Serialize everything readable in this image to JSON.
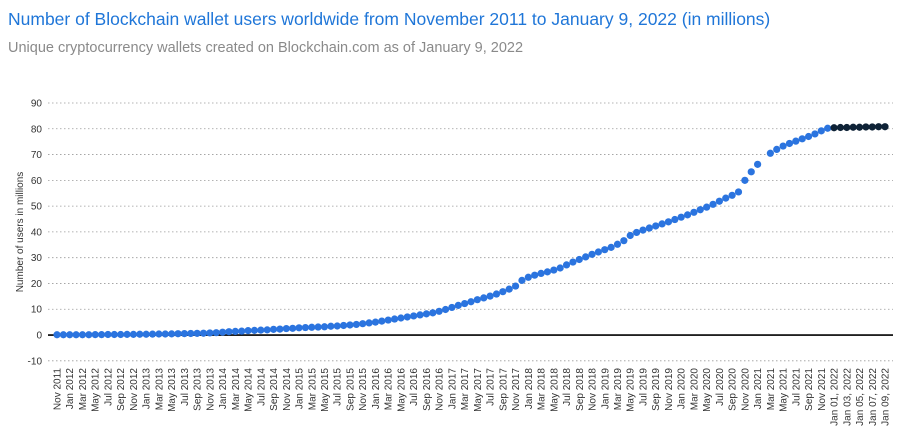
{
  "chart_data": {
    "type": "line",
    "title": "Number of Blockchain wallet users worldwide from November 2011 to January 9, 2022 (in millions)",
    "subtitle": "Unique cryptocurrency wallets created on Blockchain.com as of January 9, 2022",
    "y_label": "Number of users in millions",
    "categories": [
      "Nov 2011",
      null,
      "Jan 2012",
      null,
      "Mar 2012",
      null,
      "May 2012",
      null,
      "Jul 2012",
      null,
      "Sep 2012",
      null,
      "Nov 2012",
      null,
      "Jan 2013",
      null,
      "Mar 2013",
      null,
      "May 2013",
      null,
      "Jul 2013",
      null,
      "Sep 2013",
      null,
      "Nov 2013",
      null,
      "Jan 2014",
      null,
      "Mar 2014",
      null,
      "May 2014",
      null,
      "Jul 2014",
      null,
      "Sep 2014",
      null,
      "Nov 2014",
      null,
      "Jan 2015",
      null,
      "Mar 2015",
      null,
      "May 2015",
      null,
      "Jul 2015",
      null,
      "Sep 2015",
      null,
      "Nov 2015",
      null,
      "Jan 2016",
      null,
      "Mar 2016",
      null,
      "May 2016",
      null,
      "Jul 2016",
      null,
      "Sep 2016",
      null,
      "Nov 2016",
      null,
      "Jan 2017",
      null,
      "Mar 2017",
      null,
      "May 2017",
      null,
      "Jul 2017",
      null,
      "Sep 2017",
      null,
      "Nov 2017",
      null,
      "Jan 2018",
      null,
      "Mar 2018",
      null,
      "May 2018",
      null,
      "Jul 2018",
      null,
      "Sep 2018",
      null,
      "Nov 2018",
      null,
      "Jan 2019",
      null,
      "Mar 2019",
      null,
      "May 2019",
      null,
      "Jul 2019",
      null,
      "Sep 2019",
      null,
      "Nov 2019",
      null,
      "Jan 2020",
      null,
      "Mar 2020",
      null,
      "May 2020",
      null,
      "Jul 2020",
      null,
      "Sep 2020",
      null,
      "Nov 2020",
      null,
      "Jan 2021",
      null,
      "Mar 2021",
      null,
      "May 2021",
      null,
      "Jul 2021",
      null,
      "Sep 2021",
      null,
      "Nov 2021",
      null,
      "Jan 01, 2022",
      null,
      "Jan 03, 2022",
      null,
      "Jan 05, 2022",
      null,
      "Jan 07, 2022",
      null,
      "Jan 09, 2022"
    ],
    "series": [
      {
        "color": "#2b74df",
        "values": [
          0.1,
          0.1,
          0.1,
          0.1,
          0.1,
          0.1,
          0.15,
          0.15,
          0.2,
          0.2,
          0.2,
          0.25,
          0.25,
          0.3,
          0.3,
          0.35,
          0.4,
          0.4,
          0.45,
          0.5,
          0.55,
          0.6,
          0.65,
          0.7,
          0.8,
          0.9,
          1.1,
          1.3,
          1.4,
          1.5,
          1.7,
          1.8,
          1.9,
          2.0,
          2.2,
          2.3,
          2.5,
          2.6,
          2.8,
          2.9,
          3.0,
          3.1,
          3.2,
          3.4,
          3.5,
          3.7,
          3.9,
          4.1,
          4.4,
          4.7,
          5.0,
          5.4,
          5.8,
          6.2,
          6.6,
          7.0,
          7.4,
          7.8,
          8.2,
          8.6,
          9.2,
          9.9,
          10.7,
          11.5,
          12.2,
          12.9,
          13.7,
          14.4,
          15.1,
          15.9,
          16.8,
          17.8,
          19.0,
          21.2,
          22.4,
          23.2,
          23.9,
          24.5,
          25.2,
          26.0,
          27.2,
          28.3,
          29.3,
          30.3,
          31.3,
          32.2,
          33.1,
          34.0,
          35.2,
          36.6,
          38.6,
          39.8,
          40.7,
          41.5,
          42.3,
          43.1,
          43.9,
          44.8,
          45.7,
          46.6,
          47.6,
          48.6,
          49.6,
          50.7,
          51.9,
          53.1,
          54.2,
          55.5,
          60.0,
          63.3,
          66.2,
          null,
          70.5,
          72.0,
          73.3,
          74.3,
          75.2,
          76.1,
          77.0,
          78.0,
          79.2,
          80.2,
          null,
          null,
          null,
          null,
          null,
          null,
          null,
          null,
          null
        ]
      },
      {
        "color": "#0e2236",
        "values": [
          null,
          null,
          null,
          null,
          null,
          null,
          null,
          null,
          null,
          null,
          null,
          null,
          null,
          null,
          null,
          null,
          null,
          null,
          null,
          null,
          null,
          null,
          null,
          null,
          null,
          null,
          null,
          null,
          null,
          null,
          null,
          null,
          null,
          null,
          null,
          null,
          null,
          null,
          null,
          null,
          null,
          null,
          null,
          null,
          null,
          null,
          null,
          null,
          null,
          null,
          null,
          null,
          null,
          null,
          null,
          null,
          null,
          null,
          null,
          null,
          null,
          null,
          null,
          null,
          null,
          null,
          null,
          null,
          null,
          null,
          null,
          null,
          null,
          null,
          null,
          null,
          null,
          null,
          null,
          null,
          null,
          null,
          null,
          null,
          null,
          null,
          null,
          null,
          null,
          null,
          null,
          null,
          null,
          null,
          null,
          null,
          null,
          null,
          null,
          null,
          null,
          null,
          null,
          null,
          null,
          null,
          null,
          null,
          null,
          null,
          null,
          null,
          null,
          null,
          null,
          null,
          null,
          null,
          null,
          null,
          null,
          null,
          80.4,
          80.5,
          80.5,
          80.6,
          80.6,
          80.7,
          80.7,
          80.8,
          80.8
        ]
      }
    ],
    "ylim": [
      -10,
      90
    ],
    "yticks": [
      -10,
      0,
      10,
      20,
      30,
      40,
      50,
      60,
      70,
      80,
      90
    ],
    "grid": true
  }
}
